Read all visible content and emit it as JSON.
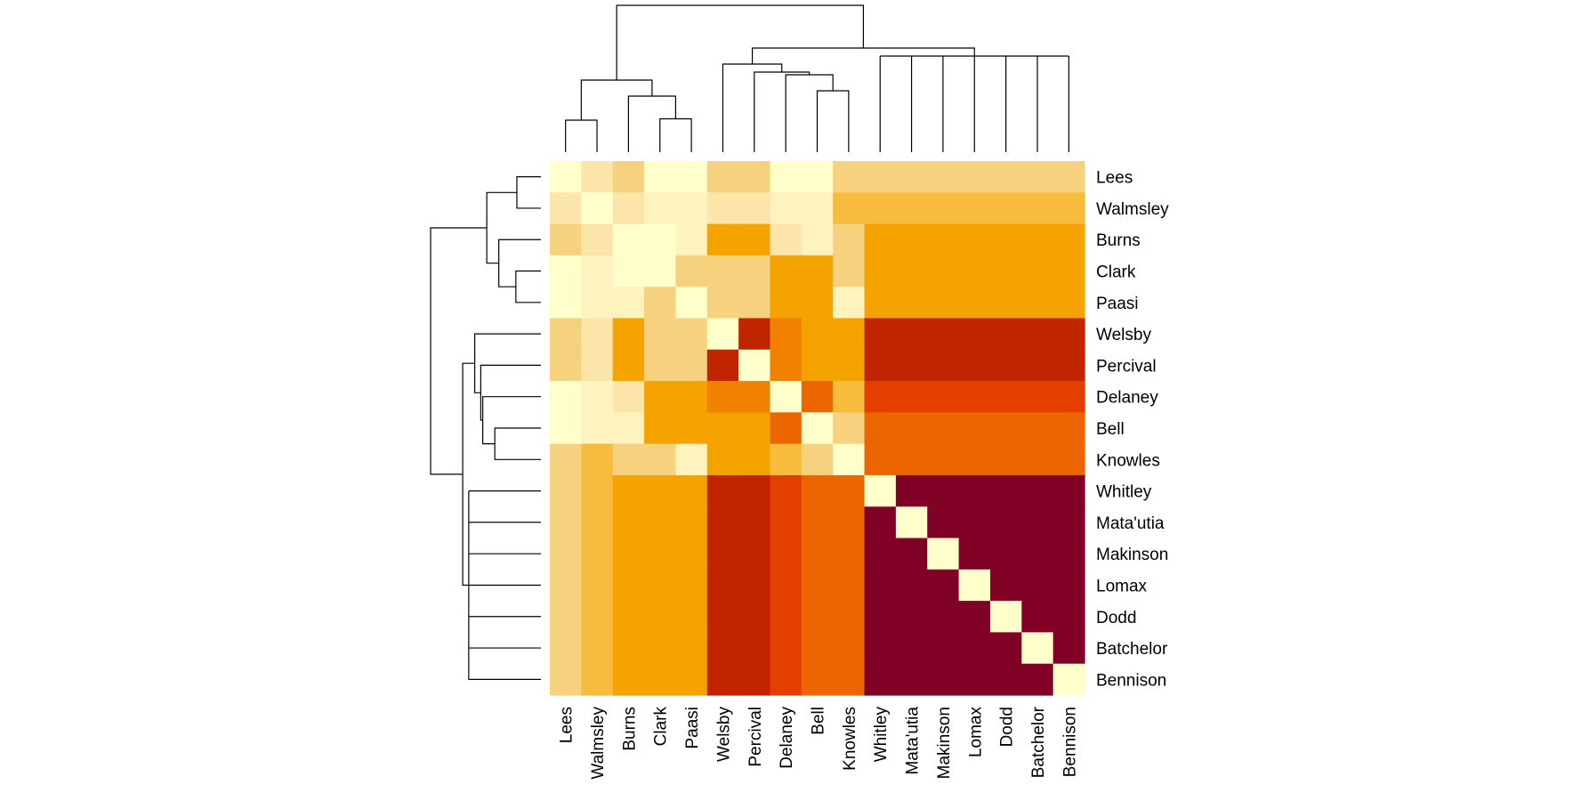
{
  "chart_data": {
    "type": "heatmap",
    "title": "",
    "xlabel": "",
    "ylabel": "",
    "rows": [
      "Lees",
      "Walmsley",
      "Burns",
      "Clark",
      "Paasi",
      "Welsby",
      "Percival",
      "Delaney",
      "Bell",
      "Knowles",
      "Whitley",
      "Mata'utia",
      "Makinson",
      "Lomax",
      "Dodd",
      "Batchelor",
      "Bennison"
    ],
    "columns": [
      "Lees",
      "Walmsley",
      "Burns",
      "Clark",
      "Paasi",
      "Welsby",
      "Percival",
      "Delaney",
      "Bell",
      "Knowles",
      "Whitley",
      "Mata'utia",
      "Makinson",
      "Lomax",
      "Dodd",
      "Batchelor",
      "Bennison"
    ],
    "color_scale": [
      "#FFFFCC",
      "#FEF3BE",
      "#FBE5A8",
      "#F7D27E",
      "#F7BC3E",
      "#F4A300",
      "#F18200",
      "#EB6500",
      "#E23F00",
      "#C12500",
      "#800026"
    ],
    "values": [
      [
        0,
        2,
        3,
        0,
        0,
        3,
        3,
        0,
        0,
        3,
        3,
        3,
        3,
        3,
        3,
        3,
        3
      ],
      [
        2,
        0,
        2,
        1,
        1,
        2,
        2,
        1,
        1,
        4,
        4,
        4,
        4,
        4,
        4,
        4,
        4
      ],
      [
        3,
        2,
        0,
        0,
        1,
        5,
        5,
        2,
        1,
        3,
        5,
        5,
        5,
        5,
        5,
        5,
        5
      ],
      [
        0,
        1,
        0,
        0,
        3,
        3,
        3,
        5,
        5,
        3,
        5,
        5,
        5,
        5,
        5,
        5,
        5
      ],
      [
        0,
        1,
        1,
        3,
        0,
        3,
        3,
        5,
        5,
        1,
        5,
        5,
        5,
        5,
        5,
        5,
        5
      ],
      [
        3,
        2,
        5,
        3,
        3,
        0,
        9,
        6,
        5,
        5,
        9,
        9,
        9,
        9,
        9,
        9,
        9
      ],
      [
        3,
        2,
        5,
        3,
        3,
        9,
        0,
        6,
        5,
        5,
        9,
        9,
        9,
        9,
        9,
        9,
        9
      ],
      [
        0,
        1,
        2,
        5,
        5,
        6,
        6,
        0,
        7,
        4,
        8,
        8,
        8,
        8,
        8,
        8,
        8
      ],
      [
        0,
        1,
        1,
        5,
        5,
        5,
        5,
        7,
        0,
        3,
        7,
        7,
        7,
        7,
        7,
        7,
        7
      ],
      [
        3,
        4,
        3,
        3,
        1,
        5,
        5,
        4,
        3,
        0,
        7,
        7,
        7,
        7,
        7,
        7,
        7
      ],
      [
        3,
        4,
        5,
        5,
        5,
        9,
        9,
        8,
        7,
        7,
        0,
        10,
        10,
        10,
        10,
        10,
        10
      ],
      [
        3,
        4,
        5,
        5,
        5,
        9,
        9,
        8,
        7,
        7,
        10,
        0,
        10,
        10,
        10,
        10,
        10
      ],
      [
        3,
        4,
        5,
        5,
        5,
        9,
        9,
        8,
        7,
        7,
        10,
        10,
        0,
        10,
        10,
        10,
        10
      ],
      [
        3,
        4,
        5,
        5,
        5,
        9,
        9,
        8,
        7,
        7,
        10,
        10,
        10,
        0,
        10,
        10,
        10
      ],
      [
        3,
        4,
        5,
        5,
        5,
        9,
        9,
        8,
        7,
        7,
        10,
        10,
        10,
        10,
        0,
        10,
        10
      ],
      [
        3,
        4,
        5,
        5,
        5,
        9,
        9,
        8,
        7,
        7,
        10,
        10,
        10,
        10,
        10,
        0,
        10
      ],
      [
        3,
        4,
        5,
        5,
        5,
        9,
        9,
        8,
        7,
        7,
        10,
        10,
        10,
        10,
        10,
        10,
        0
      ]
    ],
    "dendrogram": {
      "merges": [
        {
          "left": "Lees",
          "right": "Walmsley",
          "height": 1.2
        },
        {
          "left": "Clark",
          "right": "Paasi",
          "height": 1.25
        },
        {
          "left": "Burns",
          "right": "Clark+Paasi",
          "height": 2.1
        },
        {
          "left": "Lees+Walmsley",
          "right": "Burns+Clark+Paasi",
          "height": 2.7
        },
        {
          "left": "Bell",
          "right": "Knowles",
          "height": 2.3
        },
        {
          "left": "Delaney",
          "right": "Bell+Knowles",
          "height": 2.9
        },
        {
          "left": "Percival",
          "right": "Delaney+Bell+Knowles",
          "height": 3.0
        },
        {
          "left": "Welsby",
          "right": "Percival+Delaney+Bell+Knowles",
          "height": 3.3
        },
        {
          "left": "Whitley",
          "right": "Mata'utia+Makinson+Lomax+Dodd+Batchelor+Bennison",
          "height": 3.6
        },
        {
          "left": "Welsby cluster",
          "right": "Whitley cluster",
          "height": 3.9
        },
        {
          "left": "Lees cluster",
          "right": "Welsby+Whitley clusters",
          "height": 5.5
        }
      ]
    }
  }
}
